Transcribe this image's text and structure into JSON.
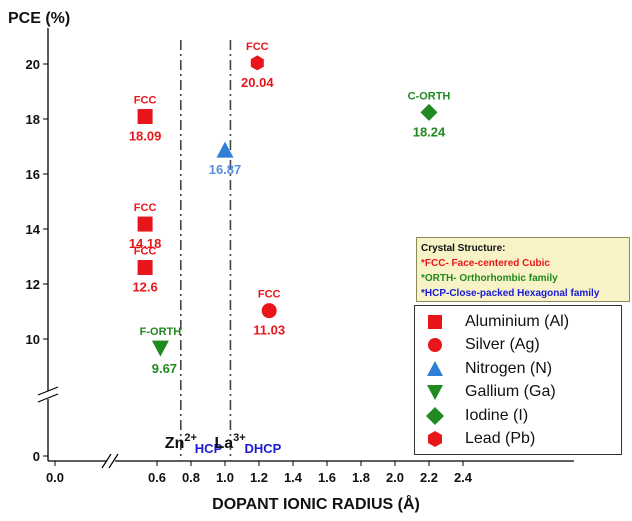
{
  "chart_data": {
    "type": "scatter",
    "ylabel": "PCE (%)",
    "xlabel": "DOPANT IONIC RADIUS (Å)",
    "xlim": [
      0.0,
      2.4
    ],
    "ylim": [
      0,
      21
    ],
    "x_ticks": [
      "0.0",
      "0.6",
      "0.8",
      "1.0",
      "1.2",
      "1.4",
      "1.6",
      "1.8",
      "2.0",
      "2.2",
      "2.4"
    ],
    "y_ticks": [
      "0",
      "10",
      "12",
      "14",
      "16",
      "18",
      "20"
    ],
    "axis_breaks": {
      "x": "between 0.0 and 0.6",
      "y": "between 0 and 10"
    },
    "series": [
      {
        "name": "Aluminium (Al)",
        "marker": "square",
        "color": "#e8161b",
        "points": [
          {
            "x": 0.53,
            "y": 18.09,
            "label": "18.09",
            "structure": "FCC"
          },
          {
            "x": 0.53,
            "y": 14.18,
            "label": "14.18",
            "structure": "FCC"
          },
          {
            "x": 0.53,
            "y": 12.6,
            "label": "12.6",
            "structure": "FCC"
          }
        ]
      },
      {
        "name": "Silver (Ag)",
        "marker": "circle",
        "color": "#e8161b",
        "points": [
          {
            "x": 1.26,
            "y": 11.03,
            "label": "11.03",
            "structure": "FCC"
          }
        ]
      },
      {
        "name": "Nitrogen (N)",
        "marker": "triangle-up",
        "color": "#2f7fd6",
        "points": [
          {
            "x": 1.0,
            "y": 16.87,
            "label": "16.87",
            "structure": ""
          }
        ]
      },
      {
        "name": "Gallium (Ga)",
        "marker": "triangle-down",
        "color": "#1f8a1f",
        "points": [
          {
            "x": 0.62,
            "y": 9.67,
            "label": "9.67",
            "structure": "F-ORTH"
          }
        ]
      },
      {
        "name": "Iodine (I)",
        "marker": "diamond",
        "color": "#1f8a1f",
        "points": [
          {
            "x": 2.2,
            "y": 18.24,
            "label": "18.24",
            "structure": "C-ORTH"
          }
        ]
      },
      {
        "name": "Lead (Pb)",
        "marker": "hexagon",
        "color": "#e8161b",
        "points": [
          {
            "x": 1.19,
            "y": 20.04,
            "label": "20.04",
            "structure": "FCC"
          }
        ]
      }
    ],
    "reference_lines": [
      {
        "x": 0.74,
        "ion": "Zn",
        "charge": "2+",
        "phase": "HCP"
      },
      {
        "x": 1.032,
        "ion": "La",
        "charge": "3+",
        "phase": "DHCP"
      }
    ],
    "legend": {
      "placement": "bottom-right"
    },
    "info_box": {
      "title": "Crystal Structure:",
      "lines": [
        {
          "text": "*FCC- Face-centered Cubic",
          "color": "#e8161b"
        },
        {
          "text": "*ORTH- Orthorhombic family",
          "color": "#1f8a1f"
        },
        {
          "text": "*HCP-Close-packed Hexagonal family",
          "color": "#1a1ad6"
        }
      ]
    },
    "grid": false
  }
}
